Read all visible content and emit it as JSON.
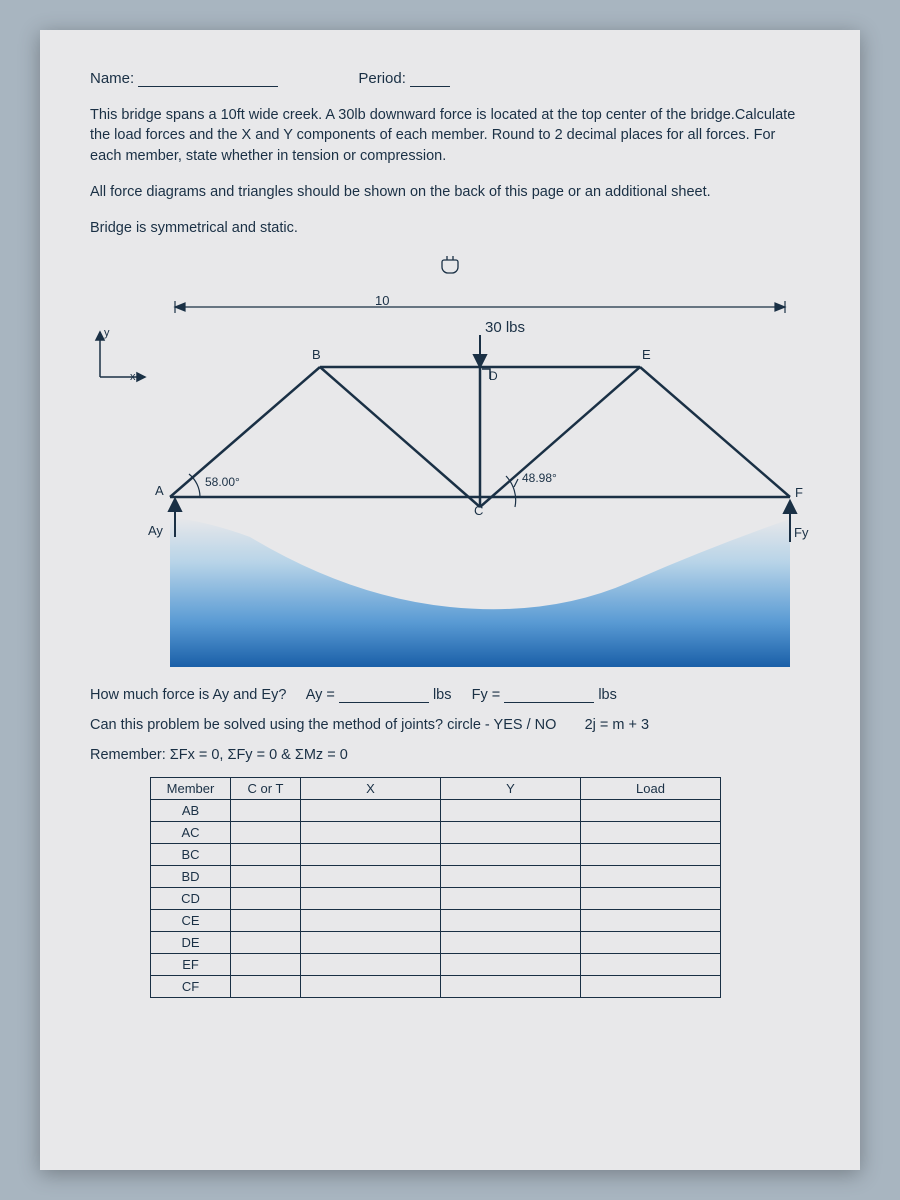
{
  "header": {
    "name_label": "Name:",
    "period_label": "Period:"
  },
  "paragraphs": {
    "p1": "This bridge spans a 10ft wide creek. A 30lb downward force is located at the top center of the bridge.Calculate the load forces and the X and Y components of each member. Round to 2 decimal places for all forces. For each member, state whether in tension or compression.",
    "p2": "All force diagrams and triangles should be shown on the back of this page or an additional sheet.",
    "p3": "Bridge is symmetrical and static."
  },
  "diagram": {
    "span_label": "10",
    "load_label": "30 lbs",
    "nodes": {
      "A": "A",
      "B": "B",
      "C": "C",
      "D": "D",
      "E": "E",
      "F": "F"
    },
    "angle_left": "58.00°",
    "angle_right": "48.98°",
    "reaction_left": "Ay",
    "reaction_right": "Fy",
    "axis_x": "x",
    "axis_y": "y",
    "colors": {
      "member": "#1a3045",
      "water_top": "#b8d4e8",
      "water_mid": "#5a9bd4",
      "water_deep": "#1a5fa8",
      "bg": "#e8e8ea"
    }
  },
  "questions": {
    "q1_pre": "How much force is Ay and Ey?",
    "q1_ay": "Ay =",
    "q1_fy": "Fy =",
    "unit": "lbs",
    "q2": "Can this problem be solved using the method of joints? circle - YES / NO",
    "q2_eq": "2j = m + 3",
    "q3": "Remember: ΣFx = 0,  ΣFy = 0  &  ΣMz = 0"
  },
  "table": {
    "headers": [
      "Member",
      "C or T",
      "X",
      "Y",
      "Load"
    ],
    "members": [
      "AB",
      "AC",
      "BC",
      "BD",
      "CD",
      "CE",
      "DE",
      "EF",
      "CF"
    ]
  }
}
